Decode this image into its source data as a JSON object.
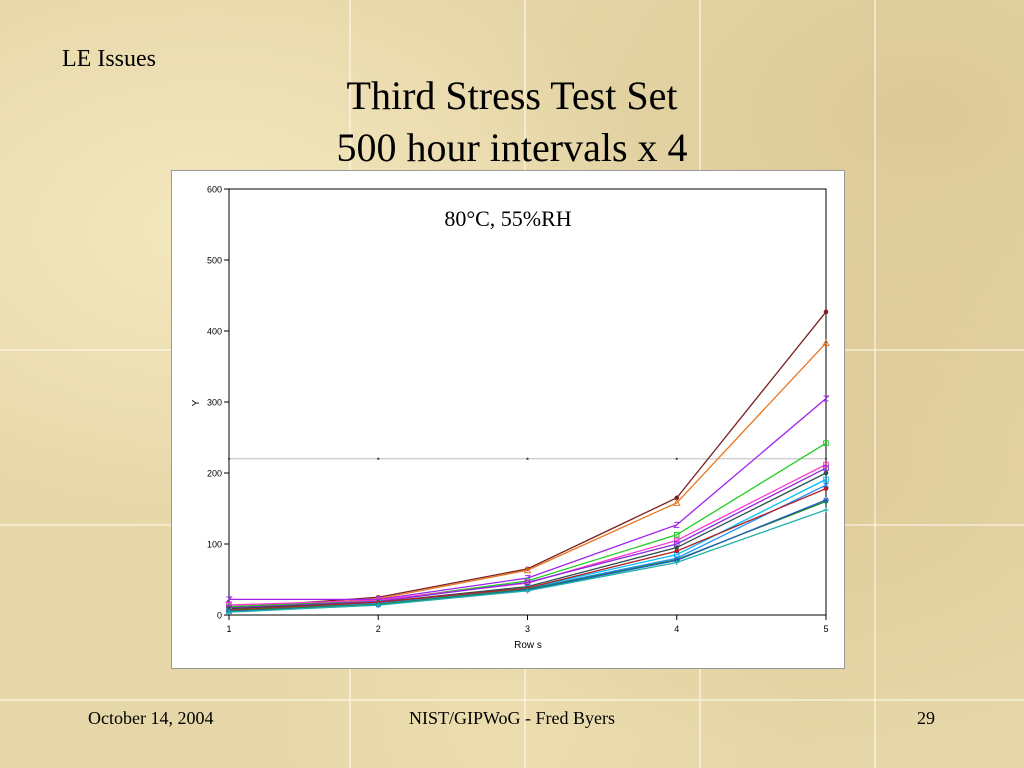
{
  "slide": {
    "section": "LE Issues",
    "title_line1": "Third Stress Test Set",
    "title_line2": "500 hour intervals x 4"
  },
  "footer": {
    "date": "October 14, 2004",
    "center": "NIST/GIPWoG - Fred Byers",
    "page": "29"
  },
  "chart_data": {
    "type": "line",
    "annotation": "80°C, 55%RH",
    "xlabel": "Row s",
    "ylabel": "Y",
    "x": [
      1,
      2,
      3,
      4,
      5
    ],
    "xlim": [
      1,
      5
    ],
    "ylim": [
      0,
      600
    ],
    "yticks": [
      0,
      100,
      200,
      300,
      400,
      500,
      600
    ],
    "reference_line_y": 220,
    "grid": false,
    "series": [
      {
        "color": "#7b1f1f",
        "marker": "dot",
        "values": [
          10,
          25,
          65,
          165,
          427
        ]
      },
      {
        "color": "#e87722",
        "marker": "triangle",
        "values": [
          8,
          23,
          63,
          158,
          383
        ]
      },
      {
        "color": "#a020f0",
        "marker": "z",
        "values": [
          22,
          22,
          52,
          127,
          305
        ]
      },
      {
        "color": "#22cc22",
        "marker": "square",
        "values": [
          12,
          20,
          48,
          113,
          242
        ]
      },
      {
        "color": "#ff33cc",
        "marker": "square",
        "values": [
          14,
          21,
          45,
          105,
          212
        ]
      },
      {
        "color": "#8a2be2",
        "marker": "square",
        "values": [
          10,
          19,
          46,
          100,
          207
        ]
      },
      {
        "color": "#2f4f4f",
        "marker": "dot",
        "values": [
          9,
          18,
          40,
          95,
          200
        ]
      },
      {
        "color": "#00bfff",
        "marker": "square",
        "values": [
          6,
          17,
          38,
          85,
          191
        ]
      },
      {
        "color": "#1e90ff",
        "marker": "x",
        "values": [
          5,
          16,
          37,
          80,
          183
        ]
      },
      {
        "color": "#b22222",
        "marker": "dot",
        "values": [
          7,
          18,
          38,
          90,
          178
        ]
      },
      {
        "color": "#228b22",
        "marker": "dot",
        "values": [
          6,
          15,
          36,
          78,
          160
        ]
      },
      {
        "color": "#1f5fbf",
        "marker": "star",
        "values": [
          5,
          14,
          35,
          77,
          162
        ]
      },
      {
        "color": "#20b2aa",
        "marker": "plus",
        "values": [
          4,
          14,
          34,
          74,
          148
        ]
      }
    ]
  }
}
